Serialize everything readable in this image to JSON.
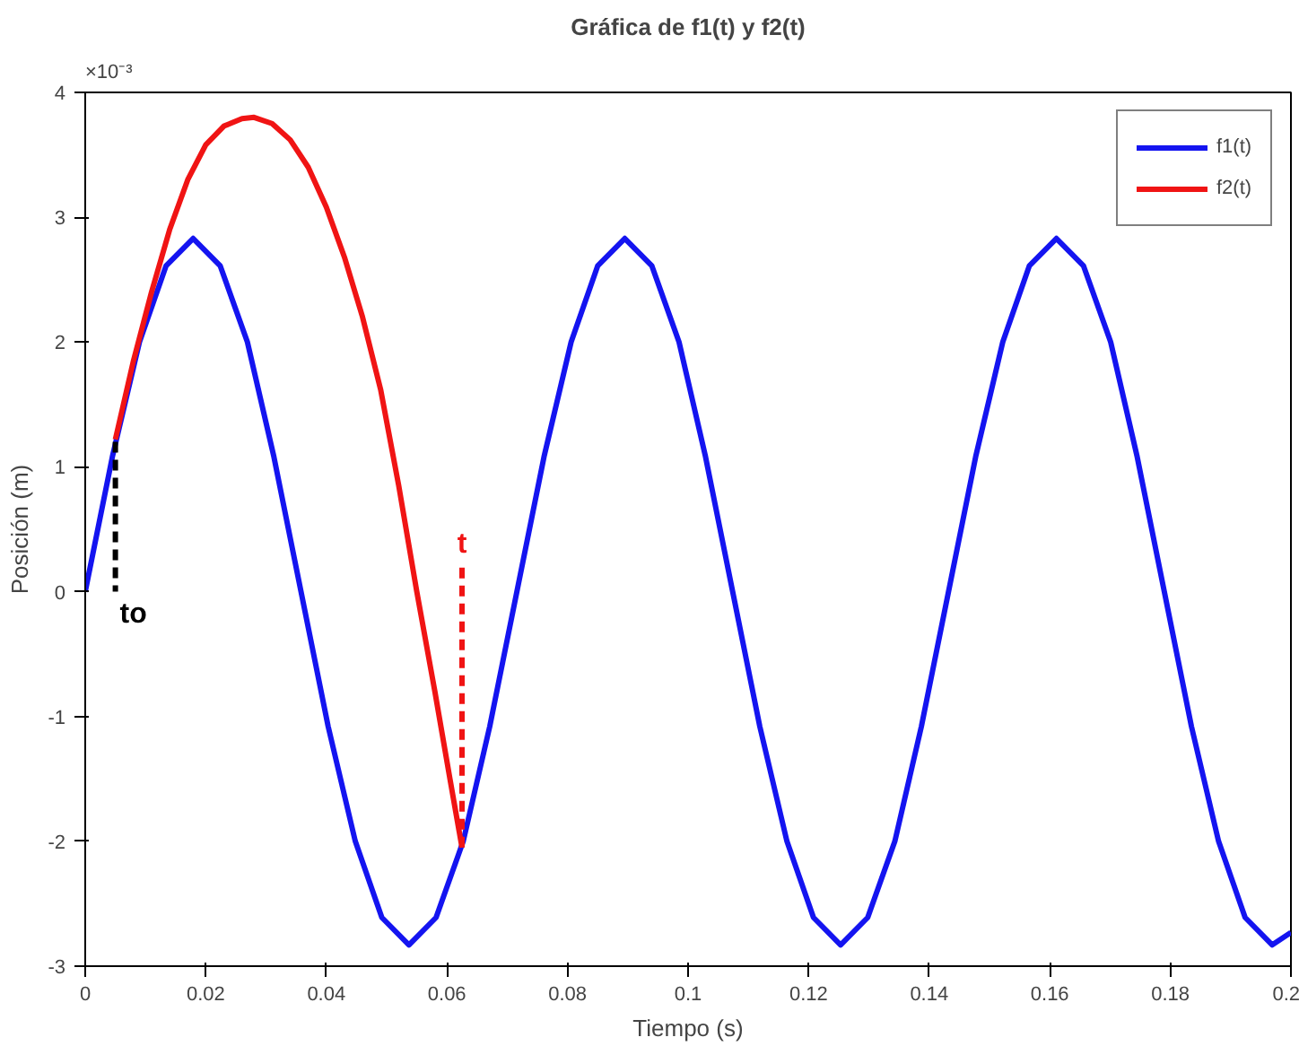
{
  "chart_data": {
    "type": "line",
    "title": "Gráfica de f1(t) y f2(t)",
    "xlabel": "Tiempo (s)",
    "ylabel": "Posición (m)",
    "xlim": [
      0,
      0.2
    ],
    "xticks": [
      0,
      0.02,
      0.04,
      0.06,
      0.08,
      0.1,
      0.12,
      0.14,
      0.16,
      0.18,
      0.2
    ],
    "ylim": [
      -3,
      4
    ],
    "yticks": [
      -3,
      -2,
      -1,
      0,
      1,
      2,
      3,
      4
    ],
    "grid": false,
    "legend": "top right",
    "line_style": "solid",
    "marker": "none",
    "series": [
      {
        "name": "f1(t)",
        "color": "#1414f0",
        "x": [
          0,
          0.0045,
          0.009,
          0.0134,
          0.0179,
          0.0224,
          0.0269,
          0.0313,
          0.0358,
          0.0403,
          0.0448,
          0.0492,
          0.0537,
          0.0582,
          0.0627,
          0.0671,
          0.0716,
          0.0761,
          0.0806,
          0.085,
          0.0895,
          0.094,
          0.0985,
          0.1029,
          0.1074,
          0.1119,
          0.1164,
          0.1208,
          0.1253,
          0.1298,
          0.1343,
          0.1387,
          0.1432,
          0.1477,
          0.1522,
          0.1566,
          0.1611,
          0.1656,
          0.1701,
          0.1745,
          0.179,
          0.1835,
          0.188,
          0.1924,
          0.1969,
          0.2
        ],
        "values": [
          0,
          1.08,
          2.0,
          2.61,
          2.83,
          2.61,
          2.0,
          1.08,
          0,
          -1.08,
          -2.0,
          -2.61,
          -2.83,
          -2.61,
          -2.0,
          -1.08,
          0,
          1.08,
          2.0,
          2.61,
          2.83,
          2.61,
          2.0,
          1.08,
          0,
          -1.08,
          -2.0,
          -2.61,
          -2.83,
          -2.61,
          -2.0,
          -1.08,
          0,
          1.08,
          2.0,
          2.61,
          2.83,
          2.61,
          2.0,
          1.08,
          0,
          -1.08,
          -2.0,
          -2.61,
          -2.83,
          -2.73
        ]
      },
      {
        "name": "f2(t)",
        "color": "#f01414",
        "x": [
          0.005,
          0.008,
          0.011,
          0.014,
          0.017,
          0.02,
          0.023,
          0.026,
          0.028,
          0.031,
          0.034,
          0.037,
          0.04,
          0.043,
          0.046,
          0.049,
          0.052,
          0.055,
          0.058,
          0.0605,
          0.0625
        ],
        "values": [
          1.22,
          1.85,
          2.4,
          2.9,
          3.3,
          3.58,
          3.73,
          3.79,
          3.8,
          3.75,
          3.62,
          3.4,
          3.08,
          2.68,
          2.2,
          1.62,
          0.85,
          0.0,
          -0.8,
          -1.5,
          -2.05
        ]
      },
      {
        "name": "to",
        "color": "#000000",
        "line_style": "dashed",
        "x": [
          0.005,
          0.005
        ],
        "values": [
          1.2,
          0
        ]
      },
      {
        "name": "t",
        "color": "#f01414",
        "line_style": "dashed",
        "x": [
          0.0625,
          0.0625
        ],
        "values": [
          -2.05,
          0.2
        ]
      }
    ],
    "annotations": [
      "×10⁻³"
    ]
  }
}
